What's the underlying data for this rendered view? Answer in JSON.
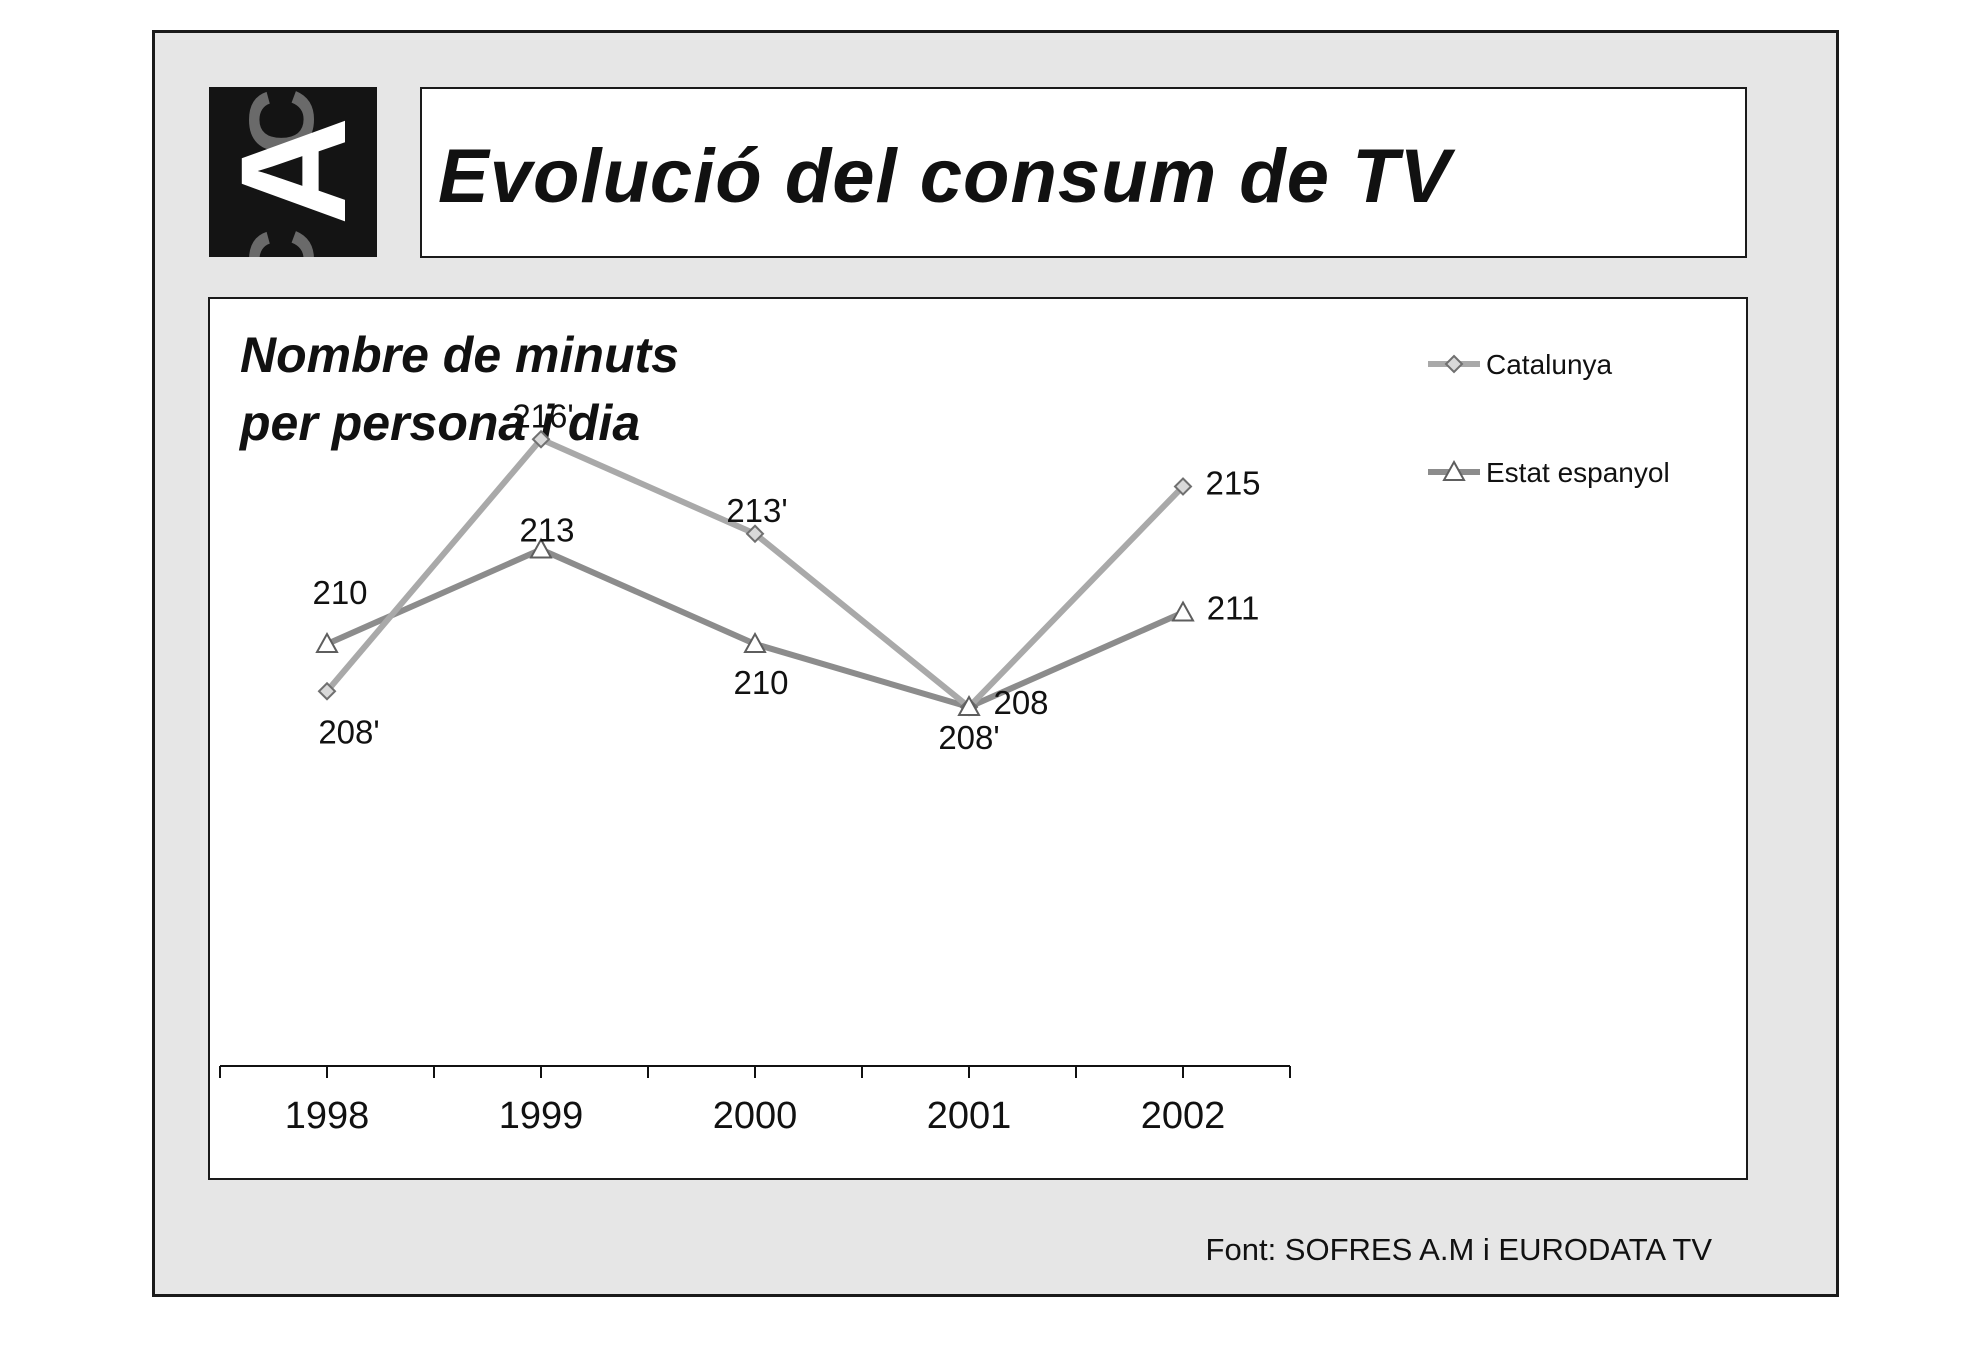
{
  "slide": {
    "title": "Evolució del consum de TV",
    "source": "Font: SOFRES A.M i EURODATA TV",
    "logo_letters": "CAC"
  },
  "chart_data": {
    "type": "line",
    "title_lines": [
      "Nombre de minuts",
      "per persona i dia"
    ],
    "categories": [
      "1998",
      "1999",
      "2000",
      "2001",
      "2002"
    ],
    "series": [
      {
        "name": "Catalunya",
        "marker": "diamond",
        "color": "#a9a9a9",
        "values": [
          208.5,
          216.5,
          213.5,
          208,
          215
        ],
        "labels": [
          "208'",
          "216'",
          "213'",
          "208'",
          "215"
        ]
      },
      {
        "name": "Estat espanyol",
        "marker": "triangle",
        "color": "#8c8c8c",
        "values": [
          210,
          213,
          210,
          208,
          211
        ],
        "labels": [
          "210",
          "213",
          "210",
          "208",
          "211"
        ]
      }
    ],
    "ylim": [
      196,
      220
    ],
    "xlabel": "",
    "ylabel": "",
    "grid": false,
    "legend": "top-right"
  }
}
